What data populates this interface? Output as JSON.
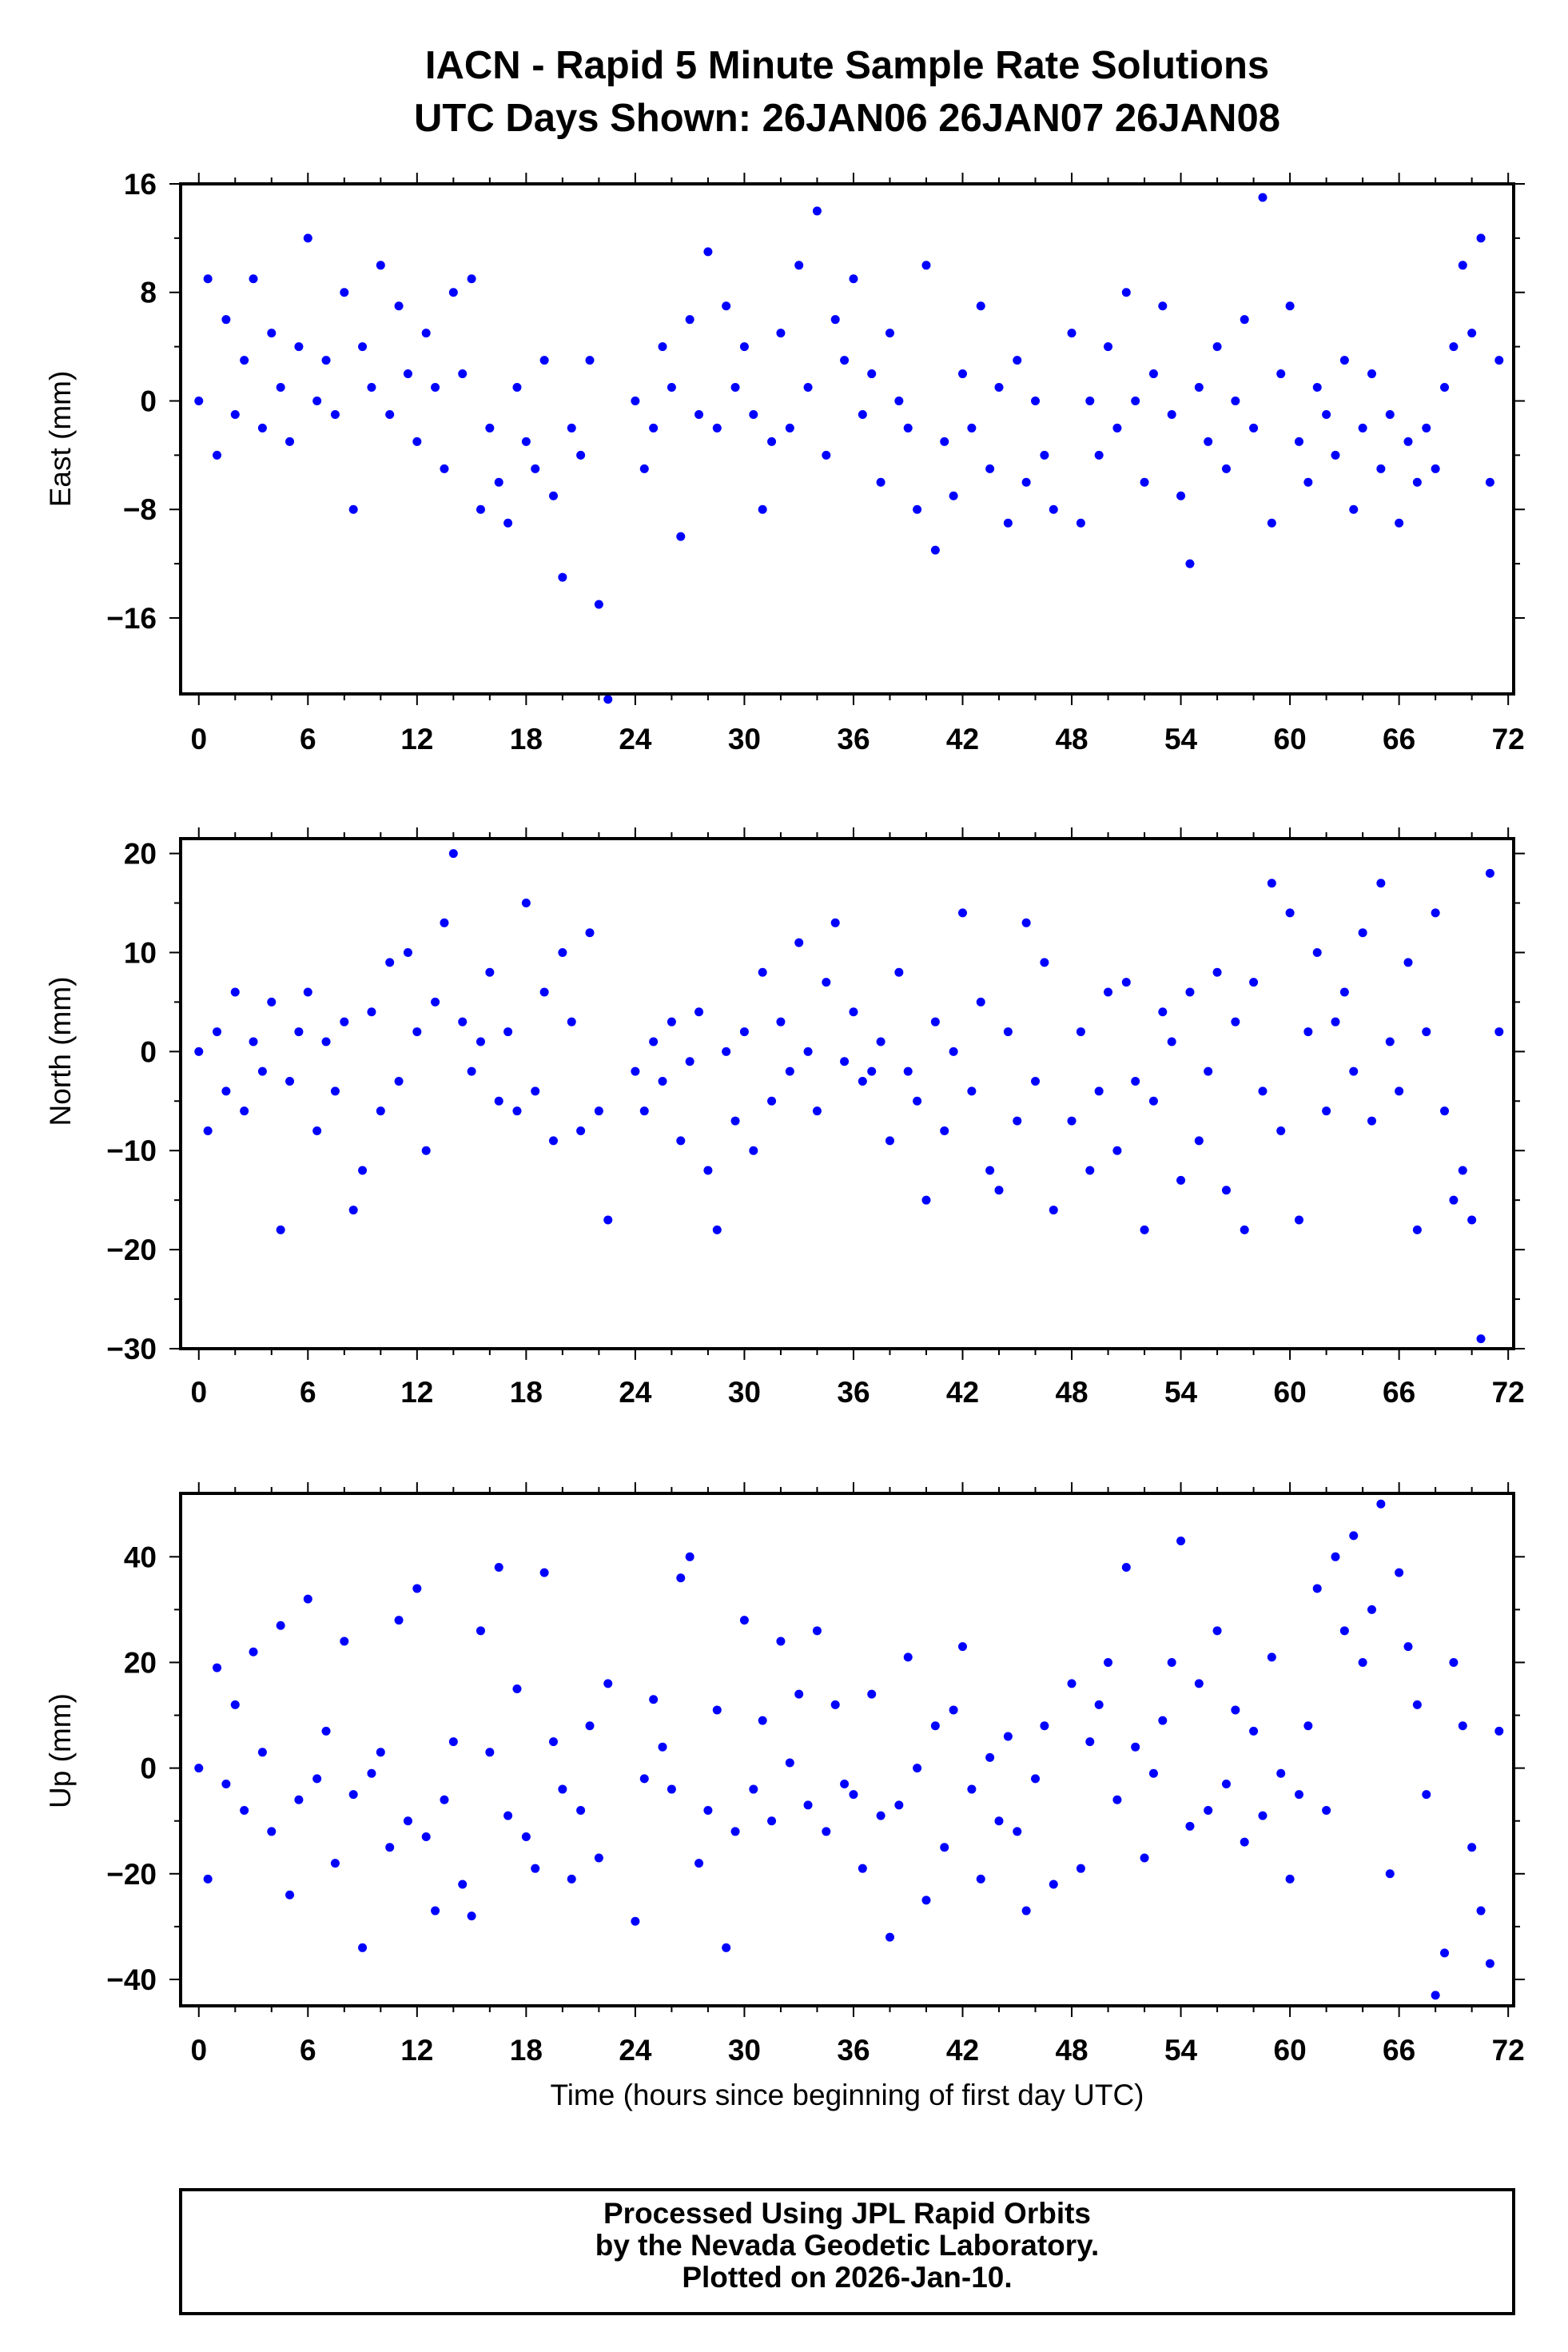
{
  "title_line1": "IACN - Rapid 5 Minute Sample Rate Solutions",
  "title_line2": "UTC Days Shown:  26JAN06 26JAN07 26JAN08",
  "footer": {
    "line1": "Processed Using JPL Rapid Orbits",
    "line2": "by the Nevada Geodetic Laboratory.",
    "line3": "Plotted on 2026-Jan-10."
  },
  "colors": {
    "points": "#0000ff",
    "axes": "#000000"
  },
  "chart_data": [
    {
      "type": "scatter",
      "ylabel": "East (mm)",
      "xlabel": "",
      "xlim": [
        -1,
        72.3
      ],
      "ylim": [
        -21.6,
        16
      ],
      "xticks": [
        0,
        6,
        12,
        18,
        24,
        30,
        36,
        42,
        48,
        54,
        60,
        66,
        72
      ],
      "yticks": [
        -16,
        -8,
        0,
        8,
        16
      ],
      "ytick_labels": [
        "−16",
        "−8",
        "0",
        "8",
        "16"
      ],
      "x_start": 0,
      "x_step": 0.5,
      "y": [
        0,
        9,
        -4,
        6,
        -1,
        3,
        9,
        -2,
        5,
        1,
        -3,
        4,
        12,
        0,
        3,
        -1,
        8,
        -8,
        4,
        1,
        10,
        -1,
        7,
        2,
        -3,
        5,
        1,
        -5,
        8,
        2,
        9,
        -8,
        -2,
        -6,
        -9,
        1,
        -3,
        -5,
        3,
        -7,
        -13,
        -2,
        -4,
        3,
        -15,
        -22,
        null,
        null,
        0,
        -5,
        -2,
        4,
        1,
        -10,
        6,
        -1,
        11,
        -2,
        7,
        1,
        4,
        -1,
        -8,
        -3,
        5,
        -2,
        10,
        1,
        14,
        -4,
        6,
        3,
        9,
        -1,
        2,
        -6,
        5,
        0,
        -2,
        -8,
        10,
        -11,
        -3,
        -7,
        2,
        -2,
        7,
        -5,
        1,
        -9,
        3,
        -6,
        0,
        -4,
        -8,
        null,
        5,
        -9,
        0,
        -4,
        4,
        -2,
        8,
        0,
        -6,
        2,
        7,
        -1,
        -7,
        -12,
        1,
        -3,
        4,
        -5,
        0,
        6,
        -2,
        15,
        -9,
        2,
        7,
        -3,
        -6,
        1,
        -1,
        -4,
        3,
        -8,
        -2,
        2,
        -5,
        -1,
        -9,
        -3,
        -6,
        -2,
        -5,
        1,
        4,
        10,
        5,
        12,
        -6,
        3
      ]
    },
    {
      "type": "scatter",
      "ylabel": "North (mm)",
      "xlabel": "",
      "xlim": [
        -1,
        72.3
      ],
      "ylim": [
        -30,
        21.5
      ],
      "xticks": [
        0,
        6,
        12,
        18,
        24,
        30,
        36,
        42,
        48,
        54,
        60,
        66,
        72
      ],
      "yticks": [
        -30,
        -20,
        -10,
        0,
        10,
        20
      ],
      "ytick_labels": [
        "−30",
        "−20",
        "−10",
        "0",
        "10",
        "20"
      ],
      "x_start": 0,
      "x_step": 0.5,
      "y": [
        0,
        -8,
        2,
        -4,
        6,
        -6,
        1,
        -2,
        5,
        -18,
        -3,
        2,
        6,
        -8,
        1,
        -4,
        3,
        -16,
        -12,
        4,
        -6,
        9,
        -3,
        10,
        2,
        -10,
        5,
        13,
        20,
        3,
        -2,
        1,
        8,
        -5,
        2,
        -6,
        15,
        -4,
        6,
        -9,
        10,
        3,
        -8,
        12,
        -6,
        -17,
        null,
        null,
        -2,
        -6,
        1,
        -3,
        3,
        -9,
        -1,
        4,
        -12,
        -18,
        0,
        -7,
        2,
        -10,
        8,
        -5,
        3,
        -2,
        11,
        0,
        -6,
        7,
        13,
        -1,
        4,
        -3,
        -2,
        1,
        -9,
        8,
        -2,
        -5,
        -15,
        3,
        -8,
        0,
        14,
        -4,
        5,
        -12,
        -14,
        2,
        -7,
        13,
        -3,
        9,
        -16,
        null,
        -7,
        2,
        -12,
        -4,
        6,
        -10,
        7,
        -3,
        -18,
        -5,
        4,
        1,
        -13,
        6,
        -9,
        -2,
        8,
        -14,
        3,
        -18,
        7,
        -4,
        17,
        -8,
        14,
        -17,
        2,
        10,
        -6,
        3,
        6,
        -2,
        12,
        -7,
        17,
        1,
        -4,
        9,
        -18,
        2,
        14,
        -6,
        -15,
        -12,
        -17,
        -29,
        18,
        2
      ]
    },
    {
      "type": "scatter",
      "ylabel": "Up (mm)",
      "xlabel": "Time (hours since beginning of first day UTC)",
      "xlim": [
        -1,
        72.3
      ],
      "ylim": [
        -45,
        52
      ],
      "xticks": [
        0,
        6,
        12,
        18,
        24,
        30,
        36,
        42,
        48,
        54,
        60,
        66,
        72
      ],
      "yticks": [
        -40,
        -20,
        0,
        20,
        40
      ],
      "ytick_labels": [
        "−40",
        "−20",
        "0",
        "20",
        "40"
      ],
      "x_start": 0,
      "x_step": 0.5,
      "y": [
        0,
        -21,
        19,
        -3,
        12,
        -8,
        22,
        3,
        -12,
        27,
        -24,
        -6,
        32,
        -2,
        7,
        -18,
        24,
        -5,
        -34,
        -1,
        3,
        -15,
        28,
        -10,
        34,
        -13,
        -27,
        -6,
        5,
        -22,
        -28,
        26,
        3,
        38,
        -9,
        15,
        -13,
        -19,
        37,
        5,
        -4,
        -21,
        -8,
        8,
        -17,
        16,
        null,
        null,
        -29,
        -2,
        13,
        4,
        -4,
        36,
        40,
        -18,
        -8,
        11,
        -34,
        -12,
        28,
        -4,
        9,
        -10,
        24,
        1,
        14,
        -7,
        26,
        -12,
        12,
        -3,
        -5,
        -19,
        14,
        -9,
        -32,
        -7,
        21,
        0,
        -25,
        8,
        -15,
        11,
        23,
        -4,
        -21,
        2,
        -10,
        6,
        -12,
        -27,
        -2,
        8,
        -22,
        null,
        16,
        -19,
        5,
        12,
        20,
        -6,
        38,
        4,
        -17,
        -1,
        9,
        20,
        43,
        -11,
        16,
        -8,
        26,
        -3,
        11,
        -14,
        7,
        -9,
        21,
        -1,
        -21,
        -5,
        8,
        34,
        -8,
        40,
        26,
        44,
        20,
        30,
        50,
        -20,
        37,
        23,
        12,
        -5,
        -43,
        -35,
        20,
        8,
        -15,
        -27,
        -37,
        7
      ]
    }
  ]
}
